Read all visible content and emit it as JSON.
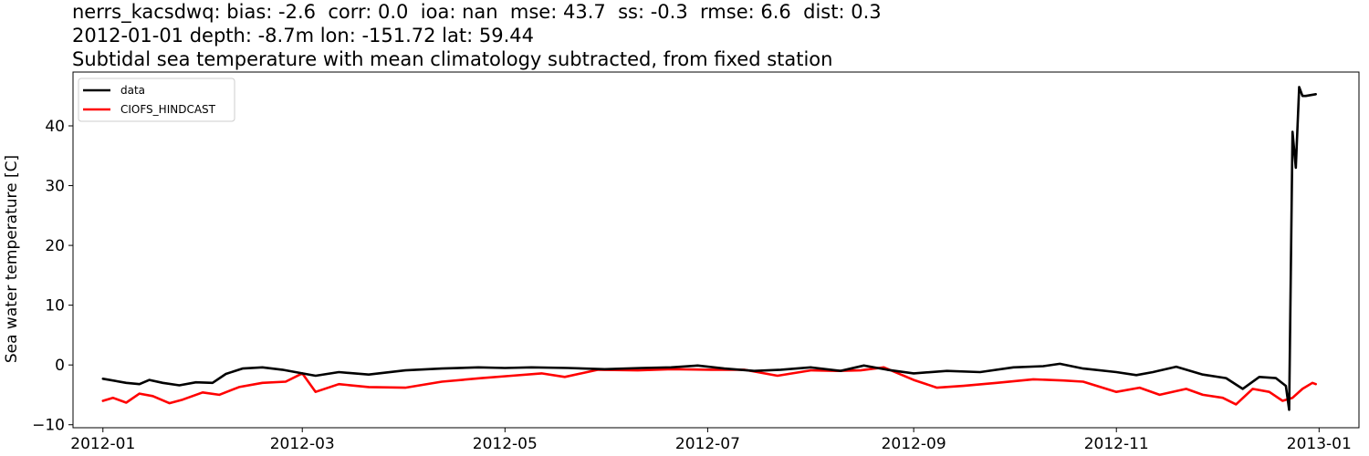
{
  "header": {
    "title_lines": [
      "nerrs_kacsdwq: bias: -2.6  corr: 0.0  ioa: nan  mse: 43.7  ss: -0.3  rmse: 6.6  dist: 0.3",
      "2012-01-01 depth: -8.7m lon: -151.72 lat: 59.44",
      "Subtidal sea temperature with mean climatology subtracted, from fixed station"
    ]
  },
  "chart_data": {
    "type": "line",
    "title": "nerrs_kacsdwq: bias: -2.6  corr: 0.0  ioa: nan  mse: 43.7  ss: -0.3  rmse: 6.6  dist: 0.3",
    "xlabel": "",
    "ylabel": "Sea water temperature [C]",
    "xlim": [
      "2011-12-23",
      "2013-01-13"
    ],
    "ylim": [
      -10.5,
      49
    ],
    "xticks": [
      "2012-01-01",
      "2012-03-01",
      "2012-05-01",
      "2012-07-01",
      "2012-09-01",
      "2012-11-01",
      "2013-01-01"
    ],
    "xtick_labels": [
      "2012-01",
      "2012-03",
      "2012-05",
      "2012-07",
      "2012-09",
      "2012-11",
      "2013-01"
    ],
    "yticks": [
      -10,
      0,
      10,
      20,
      30,
      40
    ],
    "ytick_labels": [
      "−10",
      "0",
      "10",
      "20",
      "30",
      "40"
    ],
    "grid": false,
    "legend_position": "top-left",
    "series": [
      {
        "name": "data",
        "color": "#000000",
        "x": [
          "2012-01-01",
          "2012-01-08",
          "2012-01-12",
          "2012-01-15",
          "2012-01-19",
          "2012-01-24",
          "2012-01-29",
          "2012-02-03",
          "2012-02-07",
          "2012-02-12",
          "2012-02-18",
          "2012-02-24",
          "2012-03-01",
          "2012-03-05",
          "2012-03-12",
          "2012-03-21",
          "2012-04-01",
          "2012-04-12",
          "2012-04-23",
          "2012-05-01",
          "2012-05-09",
          "2012-05-20",
          "2012-05-31",
          "2012-06-11",
          "2012-06-20",
          "2012-06-28",
          "2012-07-06",
          "2012-07-15",
          "2012-07-23",
          "2012-08-01",
          "2012-08-10",
          "2012-08-17",
          "2012-08-24",
          "2012-09-01",
          "2012-09-11",
          "2012-09-21",
          "2012-10-01",
          "2012-10-10",
          "2012-10-15",
          "2012-10-22",
          "2012-11-01",
          "2012-11-07",
          "2012-11-12",
          "2012-11-19",
          "2012-11-27",
          "2012-12-04",
          "2012-12-09",
          "2012-12-14",
          "2012-12-19",
          "2012-12-22",
          "2012-12-23",
          "2012-12-24",
          "2012-12-25",
          "2012-12-26",
          "2012-12-27",
          "2012-12-28",
          "2012-12-31"
        ],
        "y": [
          -2.3,
          -3.0,
          -3.2,
          -2.5,
          -3.0,
          -3.4,
          -2.9,
          -3.0,
          -1.5,
          -0.6,
          -0.4,
          -0.8,
          -1.4,
          -1.8,
          -1.2,
          -1.6,
          -0.9,
          -0.6,
          -0.4,
          -0.5,
          -0.4,
          -0.5,
          -0.7,
          -0.5,
          -0.4,
          -0.1,
          -0.6,
          -1.0,
          -0.8,
          -0.4,
          -1.0,
          -0.1,
          -0.8,
          -1.4,
          -1.0,
          -1.2,
          -0.4,
          -0.2,
          0.2,
          -0.6,
          -1.2,
          -1.7,
          -1.2,
          -0.3,
          -1.6,
          -2.2,
          -4.0,
          -2.0,
          -2.2,
          -3.5,
          -7.5,
          39.0,
          33.0,
          46.5,
          45.0,
          45.0,
          45.3
        ]
      },
      {
        "name": "CIOFS_HINDCAST",
        "color": "#ff0000",
        "x": [
          "2012-01-01",
          "2012-01-04",
          "2012-01-08",
          "2012-01-12",
          "2012-01-16",
          "2012-01-21",
          "2012-01-25",
          "2012-01-31",
          "2012-02-05",
          "2012-02-11",
          "2012-02-18",
          "2012-02-25",
          "2012-03-01",
          "2012-03-05",
          "2012-03-12",
          "2012-03-21",
          "2012-04-01",
          "2012-04-12",
          "2012-04-24",
          "2012-05-03",
          "2012-05-12",
          "2012-05-19",
          "2012-05-29",
          "2012-06-10",
          "2012-06-20",
          "2012-07-02",
          "2012-07-12",
          "2012-07-22",
          "2012-08-01",
          "2012-08-09",
          "2012-08-16",
          "2012-08-23",
          "2012-09-01",
          "2012-09-08",
          "2012-09-16",
          "2012-09-26",
          "2012-10-07",
          "2012-10-16",
          "2012-10-22",
          "2012-11-01",
          "2012-11-08",
          "2012-11-14",
          "2012-11-22",
          "2012-11-27",
          "2012-12-03",
          "2012-12-07",
          "2012-12-12",
          "2012-12-17",
          "2012-12-21",
          "2012-12-24",
          "2012-12-27",
          "2012-12-30",
          "2012-12-31"
        ],
        "y": [
          -6.0,
          -5.5,
          -6.3,
          -4.8,
          -5.2,
          -6.4,
          -5.8,
          -4.6,
          -5.0,
          -3.7,
          -3.0,
          -2.8,
          -1.4,
          -4.5,
          -3.2,
          -3.7,
          -3.8,
          -2.8,
          -2.2,
          -1.8,
          -1.4,
          -2.0,
          -0.8,
          -0.9,
          -0.7,
          -0.8,
          -0.8,
          -1.8,
          -0.9,
          -1.0,
          -0.9,
          -0.4,
          -2.5,
          -3.8,
          -3.5,
          -3.0,
          -2.4,
          -2.6,
          -2.8,
          -4.5,
          -3.8,
          -5.0,
          -4.0,
          -5.0,
          -5.5,
          -6.6,
          -4.0,
          -4.5,
          -6.0,
          -5.5,
          -4.0,
          -3.0,
          -3.2
        ]
      }
    ]
  }
}
